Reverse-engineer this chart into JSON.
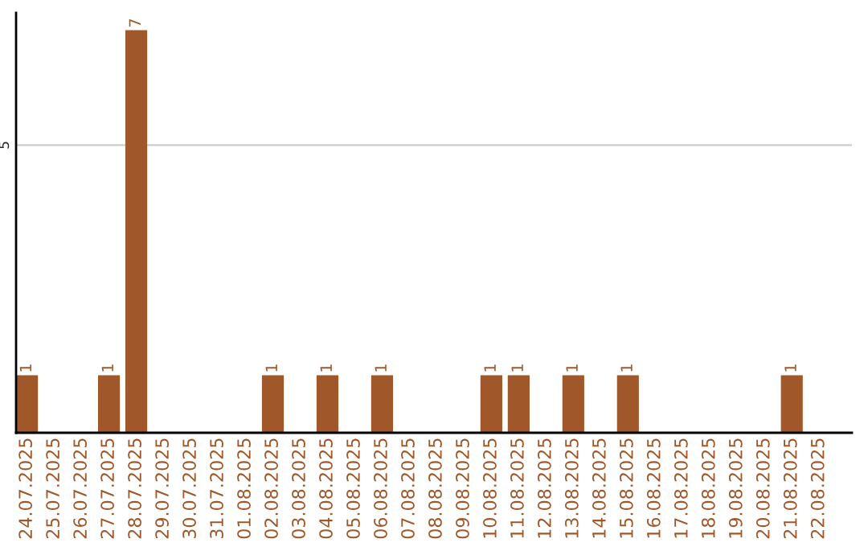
{
  "chart_data": {
    "type": "bar",
    "categories": [
      "24.07.2025",
      "25.07.2025",
      "26.07.2025",
      "27.07.2025",
      "28.07.2025",
      "29.07.2025",
      "30.07.2025",
      "31.07.2025",
      "01.08.2025",
      "02.08.2025",
      "03.08.2025",
      "04.08.2025",
      "05.08.2025",
      "06.08.2025",
      "07.08.2025",
      "08.08.2025",
      "09.08.2025",
      "10.08.2025",
      "11.08.2025",
      "12.08.2025",
      "13.08.2025",
      "14.08.2025",
      "15.08.2025",
      "16.08.2025",
      "17.08.2025",
      "18.08.2025",
      "19.08.2025",
      "20.08.2025",
      "21.08.2025",
      "22.08.2025"
    ],
    "values": [
      1,
      0,
      0,
      1,
      7,
      0,
      0,
      0,
      0,
      1,
      0,
      1,
      0,
      1,
      0,
      0,
      0,
      1,
      1,
      0,
      1,
      0,
      1,
      0,
      0,
      0,
      0,
      0,
      1,
      0
    ],
    "value_labels": [
      "1",
      null,
      null,
      "1",
      "7",
      null,
      null,
      null,
      null,
      "1",
      null,
      "1",
      null,
      "1",
      null,
      null,
      null,
      "1",
      "1",
      null,
      "1",
      null,
      "1",
      null,
      null,
      null,
      null,
      null,
      "1",
      null
    ],
    "color": "#a0582a",
    "ylim": [
      0,
      7.3
    ],
    "yticks": [
      5
    ],
    "grid": "y",
    "legend": false
  }
}
